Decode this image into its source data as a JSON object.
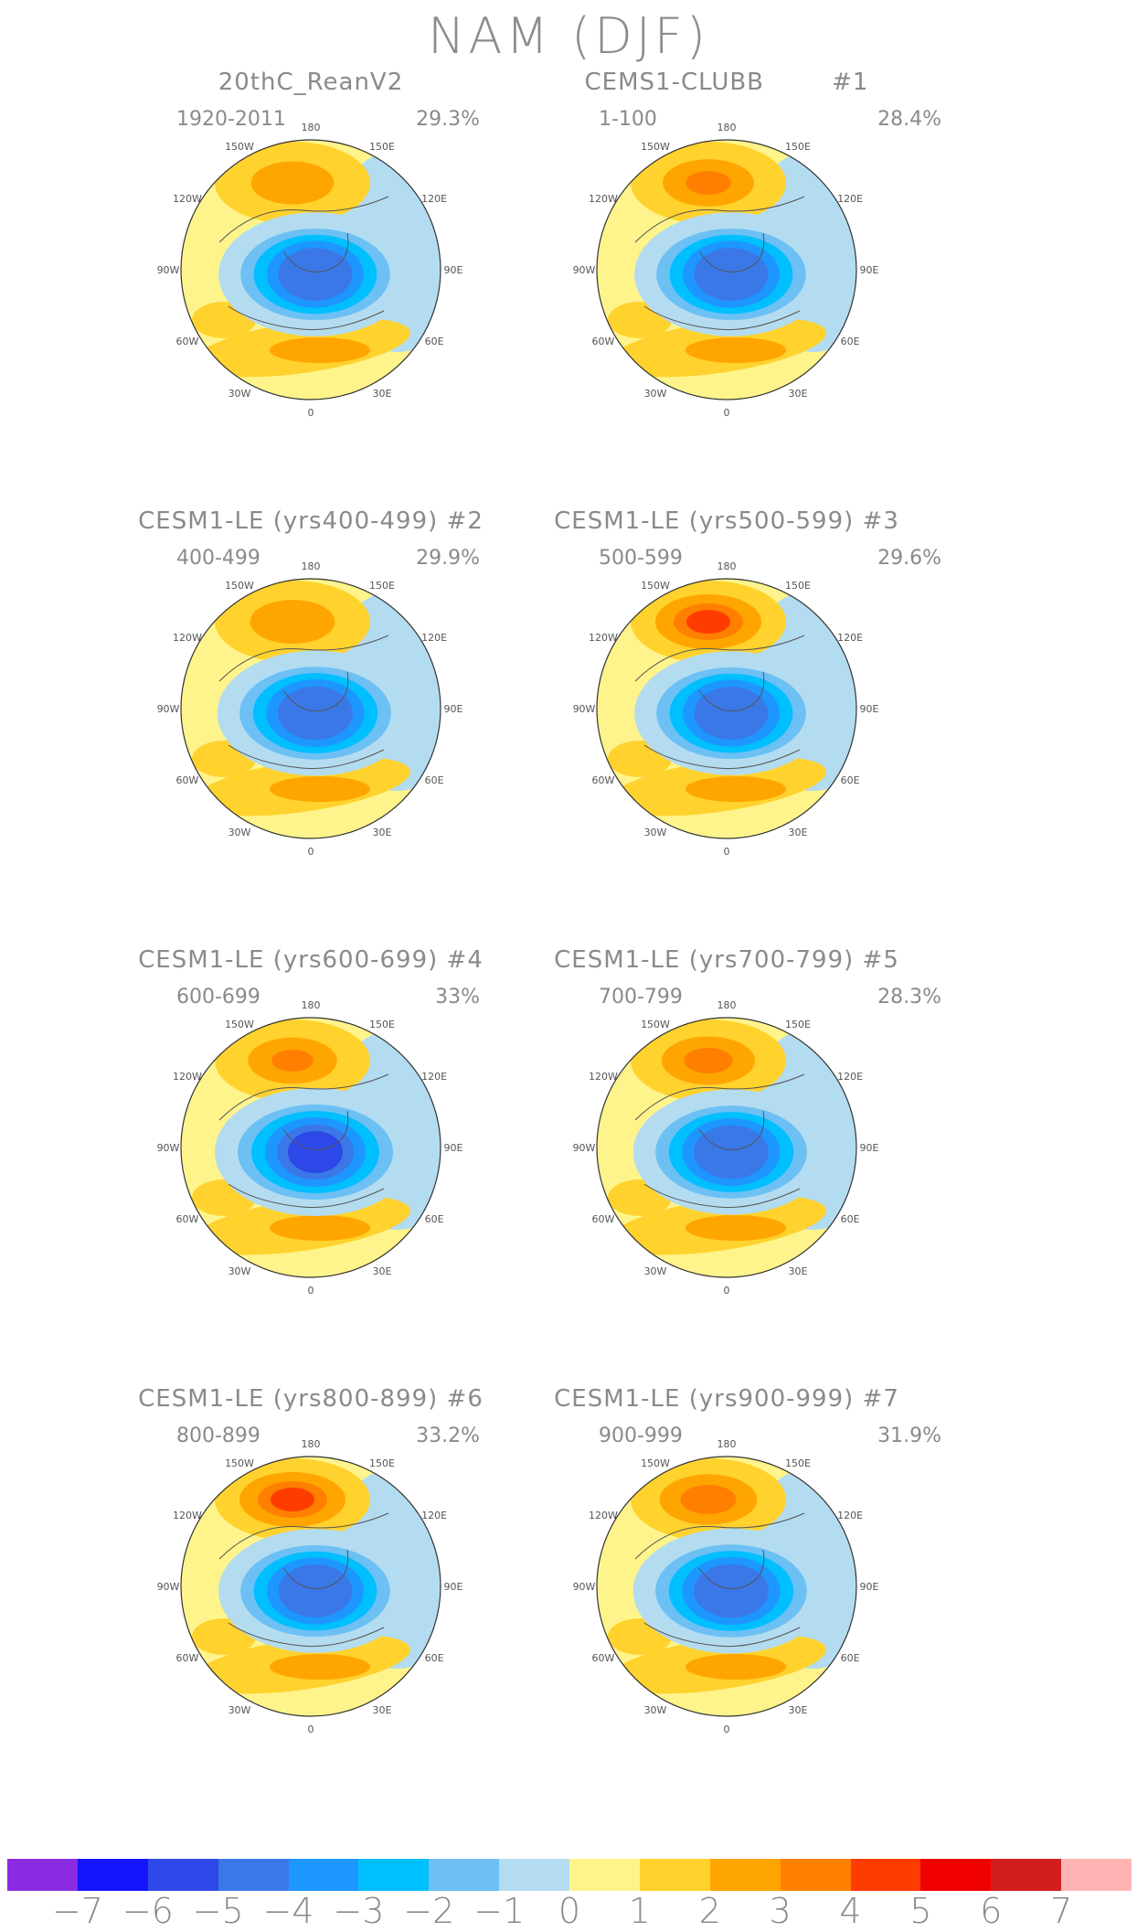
{
  "title": "NAM (DJF)",
  "panels": [
    {
      "title": "20thC_ReanV2",
      "period": "1920-2011",
      "variance": "29.3%",
      "arctic_strength": 0.85,
      "pacific_strength": 0.45
    },
    {
      "title": "CEMS1-CLUBB        #1",
      "period": "1-100",
      "variance": "28.4%",
      "arctic_strength": 0.85,
      "pacific_strength": 0.65
    },
    {
      "title": "CESM1-LE (yrs400-499) #2",
      "period": "400-499",
      "variance": "29.9%",
      "arctic_strength": 0.9,
      "pacific_strength": 0.5
    },
    {
      "title": "CESM1-LE (yrs500-599) #3",
      "period": "500-599",
      "variance": "29.6%",
      "arctic_strength": 0.85,
      "pacific_strength": 1.0
    },
    {
      "title": "CESM1-LE (yrs600-699) #4",
      "period": "600-699",
      "variance": "33%",
      "arctic_strength": 1.0,
      "pacific_strength": 0.6
    },
    {
      "title": "CESM1-LE (yrs700-799) #5",
      "period": "700-799",
      "variance": "28.3%",
      "arctic_strength": 0.9,
      "pacific_strength": 0.7
    },
    {
      "title": "CESM1-LE (yrs800-899) #6",
      "period": "800-899",
      "variance": "33.2%",
      "arctic_strength": 0.85,
      "pacific_strength": 1.0
    },
    {
      "title": "CESM1-LE (yrs900-999) #7",
      "period": "900-999",
      "variance": "31.9%",
      "arctic_strength": 0.9,
      "pacific_strength": 0.8
    }
  ],
  "longitude_labels": [
    "180",
    "150E",
    "120E",
    "90E",
    "60E",
    "30E",
    "0",
    "30W",
    "60W",
    "90W",
    "120W",
    "150W"
  ],
  "colorbar": {
    "colors": [
      "#8a2be2",
      "#1414ff",
      "#2c48e8",
      "#3a78e8",
      "#1e96ff",
      "#00bfff",
      "#6cc0f4",
      "#b4dcf0",
      "#fff48c",
      "#ffd22e",
      "#ffa500",
      "#ff7f00",
      "#ff3c00",
      "#f00000",
      "#d21e1e",
      "#ffb4b4"
    ],
    "labels": [
      "−7",
      "−6",
      "−5",
      "−4",
      "−3",
      "−2",
      "−1",
      "0",
      "1",
      "2",
      "3",
      "4",
      "5",
      "6",
      "7"
    ]
  }
}
